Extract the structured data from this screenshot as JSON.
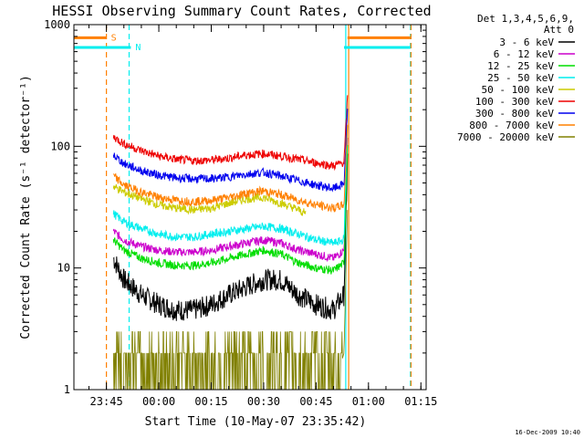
{
  "chart_data": {
    "type": "line",
    "title": "HESSI Observing Summary Count Rates, Corrected",
    "xlabel": "Start Time (10-May-07 23:35:42)",
    "ylabel": "Corrected Count Rate (s⁻¹ detector⁻¹)",
    "y_scale": "log",
    "ylim": [
      1,
      1000
    ],
    "y_ticks": [
      {
        "value": 1,
        "label": "1"
      },
      {
        "value": 10,
        "label": "10"
      },
      {
        "value": 100,
        "label": "100"
      },
      {
        "value": 1000,
        "label": "1000"
      }
    ],
    "xlim": [
      "23:35:42",
      "01:16:30"
    ],
    "x_ticks": [
      {
        "time": "23:45",
        "label": "23:45"
      },
      {
        "time": "00:00",
        "label": "00:00"
      },
      {
        "time": "00:15",
        "label": "00:15"
      },
      {
        "time": "00:30",
        "label": "00:30"
      },
      {
        "time": "00:45",
        "label": "00:45"
      },
      {
        "time": "01:00",
        "label": "01:00"
      },
      {
        "time": "01:15",
        "label": "01:15"
      }
    ],
    "legend_header": [
      "Det 1,3,4,5,6,9,",
      "Att 0"
    ],
    "legend_position": "right, outside plot",
    "series": [
      {
        "name": "3 - 6 keV",
        "color": "#000000",
        "data_start": "23:47",
        "data_end": "00:54",
        "x": [
          "23:47",
          "23:50",
          "23:55",
          "00:00",
          "00:05",
          "00:10",
          "00:15",
          "00:20",
          "00:25",
          "00:30",
          "00:35",
          "00:40",
          "00:45",
          "00:50",
          "00:53",
          "00:54"
        ],
        "y": [
          12,
          8,
          6,
          5,
          4.5,
          4.5,
          5,
          6,
          7,
          8,
          8,
          6,
          5,
          4.5,
          6,
          80
        ]
      },
      {
        "name": "6 - 12 keV",
        "color": "#cc00cc",
        "data_start": "23:47",
        "data_end": "00:54",
        "x": [
          "23:47",
          "23:50",
          "23:55",
          "00:00",
          "00:05",
          "00:10",
          "00:15",
          "00:20",
          "00:25",
          "00:30",
          "00:35",
          "00:40",
          "00:45",
          "00:50",
          "00:53",
          "00:54"
        ],
        "y": [
          20,
          17,
          15,
          14,
          13.5,
          13.5,
          14,
          15,
          16,
          17,
          16,
          14,
          13,
          12,
          14,
          120
        ]
      },
      {
        "name": "12 - 25 keV",
        "color": "#00dd00",
        "data_start": "23:47",
        "data_end": "00:54",
        "x": [
          "23:47",
          "23:50",
          "23:55",
          "00:00",
          "00:05",
          "00:10",
          "00:15",
          "00:20",
          "00:25",
          "00:30",
          "00:35",
          "00:40",
          "00:45",
          "00:50",
          "00:53",
          "00:54"
        ],
        "y": [
          17,
          14,
          12,
          11,
          10.5,
          10.5,
          11,
          12,
          13,
          14,
          13,
          11,
          10,
          9.5,
          11,
          100
        ]
      },
      {
        "name": "25 - 50 keV",
        "color": "#00eeee",
        "data_start": "23:47",
        "data_end": "00:54",
        "x": [
          "23:47",
          "23:50",
          "23:55",
          "00:00",
          "00:05",
          "00:10",
          "00:15",
          "00:20",
          "00:25",
          "00:30",
          "00:35",
          "00:40",
          "00:45",
          "00:50",
          "00:53",
          "00:54"
        ],
        "y": [
          28,
          24,
          21,
          19,
          18,
          18,
          19,
          20,
          21,
          22,
          21,
          19,
          17,
          16,
          17,
          150
        ]
      },
      {
        "name": "50 - 100 keV",
        "color": "#cccc00",
        "data_start": "23:47",
        "data_end": "00:42",
        "x": [
          "23:47",
          "23:50",
          "23:55",
          "00:00",
          "00:05",
          "00:10",
          "00:15",
          "00:20",
          "00:25",
          "00:30",
          "00:35",
          "00:40",
          "00:42"
        ],
        "y": [
          47,
          42,
          37,
          33,
          31,
          30,
          31,
          34,
          37,
          38,
          34,
          30,
          28
        ]
      },
      {
        "name": "100 - 300 keV",
        "color": "#ee0000",
        "data_start": "23:47",
        "data_end": "00:54",
        "x": [
          "23:47",
          "23:50",
          "23:55",
          "00:00",
          "00:05",
          "00:10",
          "00:15",
          "00:20",
          "00:25",
          "00:30",
          "00:35",
          "00:40",
          "00:45",
          "00:50",
          "00:53",
          "00:54"
        ],
        "y": [
          120,
          105,
          92,
          83,
          78,
          76,
          77,
          80,
          85,
          87,
          83,
          78,
          73,
          69,
          74,
          250
        ]
      },
      {
        "name": "300 - 800 keV",
        "color": "#0000ee",
        "data_start": "23:47",
        "data_end": "00:54",
        "x": [
          "23:47",
          "23:50",
          "23:55",
          "00:00",
          "00:05",
          "00:10",
          "00:15",
          "00:20",
          "00:25",
          "00:30",
          "00:35",
          "00:40",
          "00:45",
          "00:50",
          "00:53",
          "00:54"
        ],
        "y": [
          85,
          72,
          63,
          58,
          55,
          54,
          54,
          56,
          59,
          61,
          57,
          52,
          48,
          45,
          49,
          200
        ]
      },
      {
        "name": "800 - 7000 keV",
        "color": "#ff8000",
        "data_start": "23:47",
        "data_end": "00:54",
        "x": [
          "23:47",
          "23:50",
          "23:55",
          "00:00",
          "00:05",
          "00:10",
          "00:15",
          "00:20",
          "00:25",
          "00:30",
          "00:35",
          "00:40",
          "00:45",
          "00:50",
          "00:53",
          "00:54"
        ],
        "y": [
          57,
          48,
          42,
          38,
          36,
          35,
          36,
          38,
          41,
          43,
          40,
          36,
          33,
          31,
          33,
          160
        ]
      },
      {
        "name": "7000 - 20000 keV",
        "color": "#808000",
        "data_start": "23:47",
        "data_end": "00:54",
        "x": [
          "23:47",
          "23:50",
          "23:55",
          "00:00",
          "00:05",
          "00:10",
          "00:15",
          "00:20",
          "00:25",
          "00:30",
          "00:35",
          "00:40",
          "00:45",
          "00:50",
          "00:53",
          "00:54"
        ],
        "y": [
          3,
          2,
          1,
          1,
          1,
          1,
          1,
          1,
          2,
          2,
          2,
          1,
          1,
          1,
          2,
          30
        ]
      }
    ],
    "top_bars": [
      {
        "label": "S",
        "color": "#ff8000",
        "value": 780,
        "segments": [
          [
            "23:35:42",
            "23:45"
          ],
          [
            "00:54",
            "01:12"
          ]
        ]
      },
      {
        "label": "N",
        "color": "#00eeee",
        "value": 650,
        "segments": [
          [
            "23:35:42",
            "23:52"
          ],
          [
            "00:53",
            "01:12"
          ]
        ]
      }
    ],
    "vertical_markers": [
      {
        "time": "23:45",
        "color": "#ff8000",
        "style": "dashed"
      },
      {
        "time": "23:51:30",
        "color": "#00eeee",
        "style": "dashed"
      },
      {
        "time": "00:53:30",
        "color": "#00eeee",
        "style": "solid"
      },
      {
        "time": "00:54:20",
        "color": "#ff8000",
        "style": "solid"
      },
      {
        "time": "01:12",
        "color": "#00eeee",
        "style": "dashed"
      },
      {
        "time": "01:12:10",
        "color": "#ff8000",
        "style": "dashed"
      }
    ],
    "footer_timestamp": "16-Dec-2009 10:40"
  }
}
